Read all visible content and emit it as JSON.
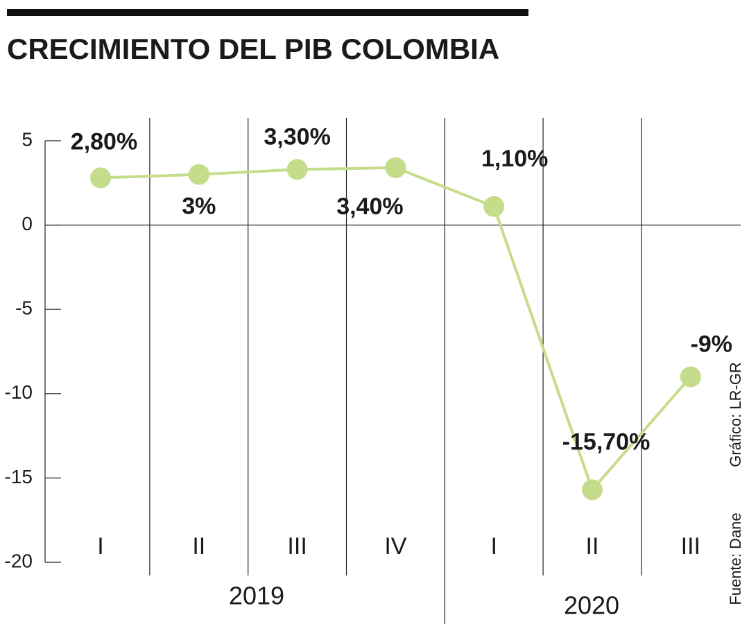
{
  "chart_data": {
    "type": "line",
    "title": "CRECIMIENTO DEL PIB COLOMBIA",
    "categories": [
      "I",
      "II",
      "III",
      "IV",
      "I",
      "II",
      "III"
    ],
    "groups": [
      "2019",
      "2020"
    ],
    "series": [
      {
        "name": "PIB",
        "color": "#c5dc8b",
        "values": [
          2.8,
          3,
          3.3,
          3.4,
          1.1,
          -15.7,
          -9
        ],
        "value_labels": [
          "2,80%",
          "3%",
          "3,30%",
          "3,40%",
          "1,10%",
          "-15,70%",
          "-9%"
        ]
      }
    ],
    "ylim": [
      -20,
      5
    ],
    "yticks": [
      5,
      0,
      -5,
      -10,
      -15,
      -20
    ],
    "credit": "Gráfico: LR-GR",
    "source": "Fuente: Dane"
  }
}
